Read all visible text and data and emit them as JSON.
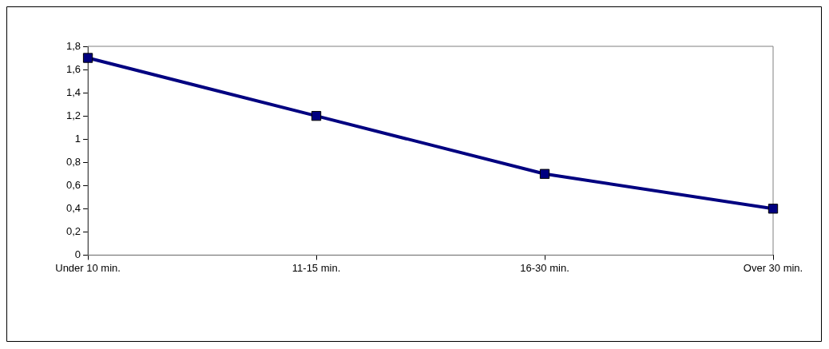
{
  "chart_data": {
    "type": "line",
    "categories": [
      "Under 10 min.",
      "11-15 min.",
      "16-30 min.",
      "Over 30 min."
    ],
    "series": [
      {
        "color": "#000080",
        "values": [
          1.7,
          1.2,
          0.7,
          0.4
        ]
      }
    ],
    "ylim": [
      0,
      1.8
    ],
    "yticks": [
      0,
      {
        "value": 0.2,
        "label": "0,2"
      },
      {
        "value": 0.4,
        "label": "0,4"
      },
      {
        "value": 0.6,
        "label": "0,6"
      },
      {
        "value": 0.8,
        "label": "0,8"
      },
      1,
      {
        "value": 1.2,
        "label": "1,2"
      },
      {
        "value": 1.4,
        "label": "1,4"
      },
      {
        "value": 1.6,
        "label": "1,6"
      },
      {
        "value": 1.8,
        "label": "1,8"
      }
    ],
    "grid": false,
    "legend": false,
    "marker": "square",
    "line_style": "solid"
  }
}
